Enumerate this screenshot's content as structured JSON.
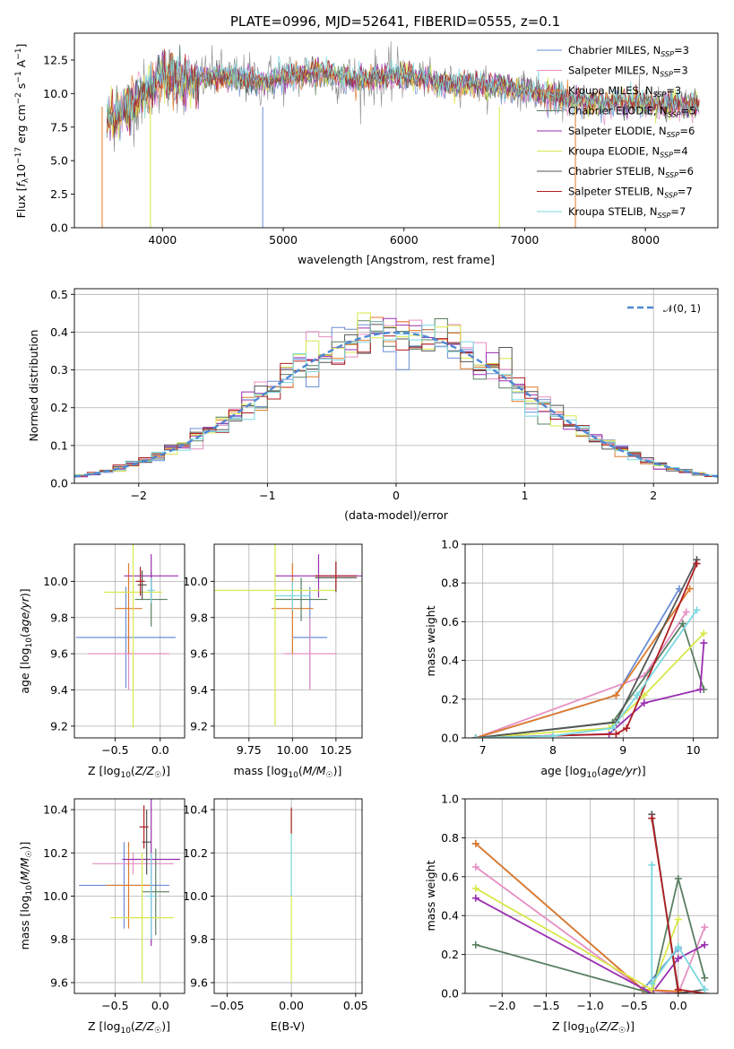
{
  "chart_data": [
    {
      "id": "spectrum",
      "type": "line",
      "title": "PLATE=0996, MJD=52641, FIBERID=0555, z=0.1",
      "xlabel": "wavelength [Angstrom, rest frame]",
      "ylabel": "Flux [f_λ 10^-17 erg cm^-2 s^-1 A^-1]",
      "xlim": [
        3270,
        8600
      ],
      "ylim": [
        0,
        14.5
      ],
      "xticks": [
        4000,
        5000,
        6000,
        7000,
        8000
      ],
      "yticks": [
        0.0,
        2.5,
        5.0,
        7.5,
        10.0,
        12.5
      ],
      "grid": false,
      "legend_position": "upper-right",
      "continuum_x": [
        3550,
        3700,
        3900,
        4000,
        4200,
        4500,
        4800,
        5000,
        5300,
        5600,
        6000,
        6300,
        6600,
        7000,
        7300,
        7600,
        7900,
        8200
      ],
      "continuum_y": [
        8.0,
        8.9,
        10.4,
        11.3,
        11.0,
        11.3,
        10.9,
        11.2,
        11.6,
        11.0,
        11.4,
        10.8,
        10.7,
        10.3,
        9.5,
        9.3,
        9.4,
        9.1
      ],
      "series": [
        {
          "name": "Chabrier MILES",
          "nssp": "3",
          "color": "#6a8ed6"
        },
        {
          "name": "Salpeter MILES",
          "nssp": "3",
          "color": "#e68fc3"
        },
        {
          "name": "Kroupa MILES",
          "nssp": "3",
          "color": "#e07a2a"
        },
        {
          "name": "Chabrier ELODIE",
          "nssp": "5",
          "color": "#5a8062"
        },
        {
          "name": "Salpeter ELODIE",
          "nssp": "6",
          "color": "#9a2fb0"
        },
        {
          "name": "Kroupa ELODIE",
          "nssp": "4",
          "color": "#d8e84a"
        },
        {
          "name": "Chabrier STELIB",
          "nssp": "6",
          "color": "#555555"
        },
        {
          "name": "Salpeter STELIB",
          "nssp": "7",
          "color": "#b01e22"
        },
        {
          "name": "Kroupa STELIB",
          "nssp": "7",
          "color": "#7ad8e0"
        }
      ]
    },
    {
      "id": "residuals",
      "type": "line",
      "xlabel": "(data-model)/error",
      "ylabel": "Normed distribution",
      "xlim": [
        -2.5,
        2.5
      ],
      "ylim": [
        0,
        0.515
      ],
      "xticks": [
        -2,
        -1,
        0,
        1,
        2
      ],
      "yticks": [
        0.0,
        0.1,
        0.2,
        0.3,
        0.4,
        0.5
      ],
      "grid": true,
      "legend_position": "upper-right",
      "reference_curve": "𝒩(0, 1)",
      "bin_width": 0.1
    },
    {
      "id": "age-vs-Z",
      "type": "scatter",
      "xlabel": "Z [log10(Z/Z☉)]",
      "ylabel": "age [log10(age/yr)]",
      "xlim": [
        -0.95,
        0.27
      ],
      "ylim": [
        9.135,
        10.205
      ],
      "xticks": [
        -0.5,
        0.0
      ],
      "yticks": [
        9.2,
        9.4,
        9.6,
        9.8,
        10.0
      ],
      "grid": true,
      "points": [
        {
          "x": -0.38,
          "y": 9.69,
          "xerr": 0.55,
          "yerr": 0.28,
          "color": "#6a8ed6"
        },
        {
          "x": -0.35,
          "y": 9.6,
          "xerr": 0.45,
          "yerr": 0.2,
          "color": "#e68fc3"
        },
        {
          "x": -0.35,
          "y": 9.85,
          "xerr": 0.15,
          "yerr": 0.25,
          "color": "#e07a2a"
        },
        {
          "x": -0.1,
          "y": 9.9,
          "xerr": 0.18,
          "yerr": 0.15,
          "color": "#5a8062"
        },
        {
          "x": -0.1,
          "y": 10.03,
          "xerr": 0.3,
          "yerr": 0.12,
          "color": "#9a2fb0"
        },
        {
          "x": -0.3,
          "y": 9.94,
          "xerr": 0.32,
          "yerr": 0.75,
          "color": "#d8e84a"
        },
        {
          "x": -0.2,
          "y": 9.98,
          "xerr": 0.05,
          "yerr": 0.08,
          "color": "#555555"
        },
        {
          "x": -0.22,
          "y": 10.0,
          "xerr": 0.05,
          "yerr": 0.08,
          "color": "#b01e22"
        },
        {
          "x": -0.1,
          "y": 9.95,
          "xerr": 0.04,
          "yerr": 0.07,
          "color": "#7ad8e0"
        }
      ]
    },
    {
      "id": "age-vs-mass",
      "type": "scatter",
      "xlabel": "mass [log10(M/M☉)]",
      "ylabel": "",
      "xlim": [
        9.55,
        10.4
      ],
      "ylim": [
        9.135,
        10.205
      ],
      "xticks": [
        9.75,
        10.0,
        10.25
      ],
      "xtick_labels": [
        "9.75",
        "10.00",
        "10.25"
      ],
      "yticks": [
        9.2,
        9.4,
        9.6,
        9.8,
        10.0
      ],
      "grid": true,
      "points": [
        {
          "x": 10.1,
          "y": 9.69,
          "xerr": 0.1,
          "yerr": 0.28,
          "color": "#6a8ed6"
        },
        {
          "x": 10.1,
          "y": 9.6,
          "xerr": 0.15,
          "yerr": 0.2,
          "color": "#e68fc3"
        },
        {
          "x": 10.0,
          "y": 9.85,
          "xerr": 0.12,
          "yerr": 0.25,
          "color": "#e07a2a"
        },
        {
          "x": 10.05,
          "y": 9.9,
          "xerr": 0.15,
          "yerr": 0.12,
          "color": "#5a8062"
        },
        {
          "x": 10.15,
          "y": 10.03,
          "xerr": 0.25,
          "yerr": 0.12,
          "color": "#9a2fb0"
        },
        {
          "x": 9.9,
          "y": 9.95,
          "xerr": 0.35,
          "yerr": 0.75,
          "color": "#d8e84a"
        },
        {
          "x": 10.25,
          "y": 10.02,
          "xerr": 0.12,
          "yerr": 0.08,
          "color": "#555555"
        },
        {
          "x": 10.25,
          "y": 10.03,
          "xerr": 0.12,
          "yerr": 0.08,
          "color": "#b01e22"
        },
        {
          "x": 10.0,
          "y": 9.92,
          "xerr": 0.1,
          "yerr": 0.08,
          "color": "#7ad8e0"
        }
      ]
    },
    {
      "id": "weight-vs-age",
      "type": "line",
      "xlabel": "age [log10(age/yr)]",
      "ylabel": "mass weight",
      "xlim": [
        6.75,
        10.35
      ],
      "ylim": [
        0,
        1.0
      ],
      "xticks": [
        7,
        8,
        9,
        10
      ],
      "yticks": [
        0.0,
        0.2,
        0.4,
        0.6,
        0.8,
        1.0
      ],
      "grid": true,
      "series": [
        {
          "name": "Chabrier MILES",
          "color": "#6a8ed6",
          "x": [
            6.9,
            8.9,
            9.8
          ],
          "y": [
            0.0,
            0.22,
            0.77
          ]
        },
        {
          "name": "Salpeter MILES",
          "color": "#e68fc3",
          "x": [
            6.9,
            9.3,
            9.9
          ],
          "y": [
            0.0,
            0.32,
            0.65
          ]
        },
        {
          "name": "Kroupa MILES",
          "color": "#e07a2a",
          "x": [
            6.9,
            8.9,
            9.95
          ],
          "y": [
            0.0,
            0.22,
            0.77
          ]
        },
        {
          "name": "Chabrier ELODIE",
          "color": "#5a8062",
          "x": [
            6.9,
            8.85,
            9.85,
            10.15
          ],
          "y": [
            0.0,
            0.08,
            0.59,
            0.25
          ]
        },
        {
          "name": "Salpeter ELODIE",
          "color": "#9a2fb0",
          "x": [
            6.9,
            8.8,
            9.3,
            10.1,
            10.15
          ],
          "y": [
            0.0,
            0.02,
            0.18,
            0.25,
            0.49
          ]
        },
        {
          "name": "Kroupa ELODIE",
          "color": "#d8e84a",
          "x": [
            6.9,
            8.8,
            9.3,
            10.15
          ],
          "y": [
            0.0,
            0.05,
            0.22,
            0.54
          ]
        },
        {
          "name": "Chabrier STELIB",
          "color": "#555555",
          "x": [
            6.9,
            8.9,
            10.05
          ],
          "y": [
            0.0,
            0.08,
            0.92
          ]
        },
        {
          "name": "Salpeter STELIB",
          "color": "#b01e22",
          "x": [
            6.9,
            8.9,
            9.05,
            10.05
          ],
          "y": [
            0.0,
            0.02,
            0.05,
            0.9
          ]
        },
        {
          "name": "Kroupa STELIB",
          "color": "#7ad8e0",
          "x": [
            6.9,
            8.0,
            8.85,
            9.2,
            10.05
          ],
          "y": [
            0.0,
            0.01,
            0.05,
            0.22,
            0.66
          ]
        }
      ]
    },
    {
      "id": "mass-vs-Z",
      "type": "scatter",
      "xlabel": "Z [log10(Z/Z☉)]",
      "ylabel": "mass [log10(M/M☉)]",
      "xlim": [
        -0.95,
        0.27
      ],
      "ylim": [
        9.55,
        10.45
      ],
      "xticks": [
        -0.5,
        0.0
      ],
      "yticks": [
        9.6,
        9.8,
        10.0,
        10.2,
        10.4
      ],
      "grid": true,
      "points": [
        {
          "x": -0.4,
          "y": 10.05,
          "xerr": 0.5,
          "yerr": 0.2,
          "color": "#6a8ed6"
        },
        {
          "x": -0.3,
          "y": 10.15,
          "xerr": 0.45,
          "yerr": 0.05,
          "color": "#e68fc3"
        },
        {
          "x": -0.35,
          "y": 10.05,
          "xerr": 0.25,
          "yerr": 0.2,
          "color": "#e07a2a"
        },
        {
          "x": -0.05,
          "y": 10.02,
          "xerr": 0.15,
          "yerr": 0.2,
          "color": "#5a8062"
        },
        {
          "x": -0.1,
          "y": 10.17,
          "xerr": 0.32,
          "yerr": 0.4,
          "color": "#9a2fb0"
        },
        {
          "x": -0.2,
          "y": 9.9,
          "xerr": 0.35,
          "yerr": 0.3,
          "color": "#d8e84a"
        },
        {
          "x": -0.15,
          "y": 10.25,
          "xerr": 0.05,
          "yerr": 0.15,
          "color": "#555555"
        },
        {
          "x": -0.18,
          "y": 10.32,
          "xerr": 0.05,
          "yerr": 0.1,
          "color": "#b01e22"
        },
        {
          "x": -0.1,
          "y": 10.0,
          "xerr": 0.05,
          "yerr": 0.2,
          "color": "#7ad8e0"
        }
      ]
    },
    {
      "id": "mass-vs-EBV",
      "type": "scatter",
      "xlabel": "E(B-V)",
      "ylabel": "",
      "xlim": [
        -0.06,
        0.055
      ],
      "ylim": [
        9.55,
        10.45
      ],
      "xticks": [
        -0.05,
        0.0,
        0.05
      ],
      "xtick_labels": [
        "−0.05",
        "0.00",
        "0.05"
      ],
      "yticks": [
        9.6,
        9.8,
        10.0,
        10.2,
        10.4
      ],
      "grid": true,
      "points": [
        {
          "x": 0.0,
          "y": 10.0,
          "xerr": 0,
          "yerr": 0.4,
          "color": "#d8e84a"
        },
        {
          "x": 0.0,
          "y": 10.2,
          "xerr": 0,
          "yerr": 0.2,
          "color": "#7ad8e0"
        },
        {
          "x": 0.0,
          "y": 10.35,
          "xerr": 0,
          "yerr": 0.06,
          "color": "#b01e22"
        }
      ]
    },
    {
      "id": "weight-vs-Z",
      "type": "line",
      "xlabel": "Z [log10(Z/Z☉)]",
      "ylabel": "mass weight",
      "xlim": [
        -2.42,
        0.45
      ],
      "ylim": [
        0,
        1.0
      ],
      "xticks": [
        -2.0,
        -1.5,
        -1.0,
        -0.5,
        0.0
      ],
      "yticks": [
        0.0,
        0.2,
        0.4,
        0.6,
        0.8,
        1.0
      ],
      "grid": true,
      "series": [
        {
          "name": "Chabrier MILES",
          "color": "#6a8ed6",
          "x": [
            -2.3,
            -0.4,
            0.0
          ],
          "y": [
            0.77,
            0.02,
            0.23
          ]
        },
        {
          "name": "Salpeter MILES",
          "color": "#e68fc3",
          "x": [
            -2.3,
            -0.4,
            0.0,
            0.3
          ],
          "y": [
            0.65,
            0.02,
            0.0,
            0.34
          ]
        },
        {
          "name": "Kroupa MILES",
          "color": "#e07a2a",
          "x": [
            -2.3,
            -0.4,
            0.0
          ],
          "y": [
            0.77,
            0.02,
            0.01
          ]
        },
        {
          "name": "Chabrier ELODIE",
          "color": "#5a8062",
          "x": [
            -2.3,
            -0.3,
            0.0,
            0.3
          ],
          "y": [
            0.25,
            0.0,
            0.59,
            0.08
          ]
        },
        {
          "name": "Salpeter ELODIE",
          "color": "#9a2fb0",
          "x": [
            -2.3,
            -0.3,
            0.0,
            0.3
          ],
          "y": [
            0.49,
            0.0,
            0.18,
            0.25
          ]
        },
        {
          "name": "Kroupa ELODIE",
          "color": "#d8e84a",
          "x": [
            -2.3,
            -0.3,
            0.0
          ],
          "y": [
            0.54,
            0.02,
            0.38
          ]
        },
        {
          "name": "Chabrier STELIB",
          "color": "#555555",
          "x": [
            -0.3,
            0.0,
            0.3
          ],
          "y": [
            0.92,
            0.0,
            0.02
          ]
        },
        {
          "name": "Salpeter STELIB",
          "color": "#b01e22",
          "x": [
            -0.3,
            0.0,
            0.3
          ],
          "y": [
            0.9,
            0.02,
            0.0
          ]
        },
        {
          "name": "Kroupa STELIB",
          "color": "#7ad8e0",
          "x": [
            -0.3,
            -0.3,
            0.0,
            0.3
          ],
          "y": [
            0.66,
            0.05,
            0.24,
            0.02
          ]
        }
      ]
    }
  ]
}
